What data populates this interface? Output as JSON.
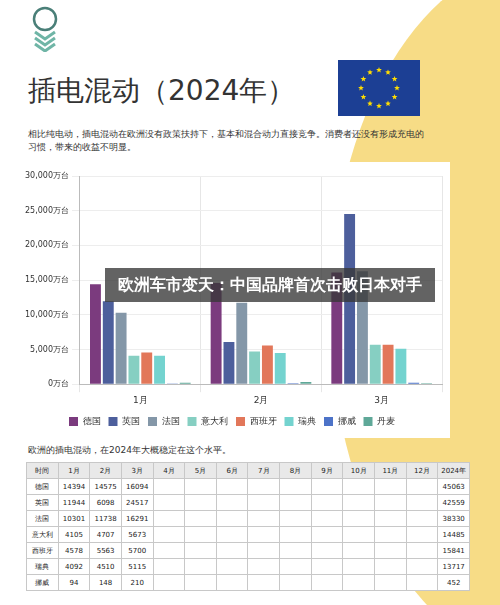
{
  "header": {
    "title": "插电混动（2024年）",
    "subtitle": "相比纯电动，插电混动在欧洲没有政策扶持下，基本和混合动力直接竞争。消费者还没有形成充电的习惯，带来的收益不明显。"
  },
  "banner": "欧洲车市变天：中国品牌首次击败日本对手",
  "chart_data": {
    "type": "bar",
    "categories": [
      "1月",
      "2月",
      "3月"
    ],
    "series": [
      {
        "name": "德国",
        "color": "#7b3b7e",
        "values": [
          14394,
          14575,
          16094
        ]
      },
      {
        "name": "英国",
        "color": "#4d5f9c",
        "values": [
          11944,
          6098,
          24517
        ]
      },
      {
        "name": "法国",
        "color": "#8497a8",
        "values": [
          10301,
          11738,
          16291
        ]
      },
      {
        "name": "意大利",
        "color": "#86cfc2",
        "values": [
          4105,
          4707,
          5673
        ]
      },
      {
        "name": "西班牙",
        "color": "#e2775a",
        "values": [
          4578,
          5563,
          5700
        ]
      },
      {
        "name": "瑞典",
        "color": "#74d3cf",
        "values": [
          4092,
          4510,
          5115
        ]
      },
      {
        "name": "挪威",
        "color": "#4d73c8",
        "values": [
          94,
          148,
          210
        ]
      },
      {
        "name": "丹麦",
        "color": "#5fa898",
        "values": [
          200,
          300,
          150
        ]
      }
    ],
    "ylim": [
      0,
      30000
    ],
    "yticks": [
      {
        "value": 0,
        "label": "0万台"
      },
      {
        "value": 5000,
        "label": "5,000万台"
      },
      {
        "value": 10000,
        "label": "10,000万台"
      },
      {
        "value": 15000,
        "label": "15,000万台"
      },
      {
        "value": 20000,
        "label": "20,000万台"
      },
      {
        "value": 25000,
        "label": "25,000万台"
      },
      {
        "value": 30000,
        "label": "30,000万台"
      }
    ],
    "grid": true,
    "legend": "bottom"
  },
  "caption": "欧洲的插电混动，在2024年大概稳定在这个水平。",
  "table": {
    "columns": [
      "时间",
      "1月",
      "2月",
      "3月",
      "4月",
      "5月",
      "6月",
      "7月",
      "8月",
      "9月",
      "10月",
      "11月",
      "12月",
      "2024年"
    ],
    "rows": [
      [
        "德国",
        14394,
        14575,
        16094,
        null,
        null,
        null,
        null,
        null,
        null,
        null,
        null,
        null,
        45063
      ],
      [
        "英国",
        11944,
        6098,
        24517,
        null,
        null,
        null,
        null,
        null,
        null,
        null,
        null,
        null,
        42559
      ],
      [
        "法国",
        10301,
        11738,
        16291,
        null,
        null,
        null,
        null,
        null,
        null,
        null,
        null,
        null,
        38330
      ],
      [
        "意大利",
        4105,
        4707,
        5673,
        null,
        null,
        null,
        null,
        null,
        null,
        null,
        null,
        null,
        14485
      ],
      [
        "西班牙",
        4578,
        5563,
        5700,
        null,
        null,
        null,
        null,
        null,
        null,
        null,
        null,
        null,
        15841
      ],
      [
        "瑞典",
        4092,
        4510,
        5115,
        null,
        null,
        null,
        null,
        null,
        null,
        null,
        null,
        null,
        13717
      ],
      [
        "挪威",
        94,
        148,
        210,
        null,
        null,
        null,
        null,
        null,
        null,
        null,
        null,
        null,
        452
      ]
    ]
  }
}
